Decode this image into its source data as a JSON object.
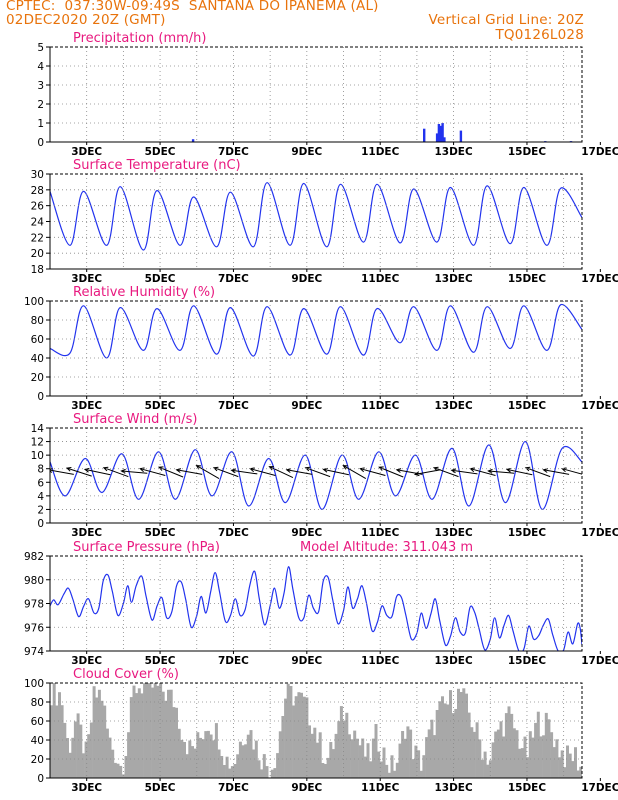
{
  "header": {
    "line1_left": "CPTEC:  037:30W-09:49S  SANTANA DO IPANEMA (AL)",
    "line2_left": "02DEC2020 20Z (GMT)",
    "line2_right": "Vertical Grid Line: 20Z",
    "line3_right": "TQ0126L028",
    "color": "#e8730c"
  },
  "x_axis": {
    "tick_labels": [
      "3DEC",
      "5DEC",
      "7DEC",
      "9DEC",
      "11DEC",
      "13DEC",
      "15DEC",
      "17DEC"
    ],
    "range_days": [
      0,
      14.5
    ]
  },
  "colors": {
    "title": "#e8197f",
    "line": "#2233ee",
    "bar": "#2233ee",
    "cloud": "#a8a8a8",
    "arrow": "#000000",
    "grid": "#888888"
  },
  "chart_data": [
    {
      "id": "precip",
      "type": "bar",
      "title": "Precipitation (mm/h)",
      "ylim": [
        0,
        5
      ],
      "yticks": [
        "0",
        "1",
        "2",
        "3",
        "4",
        "5"
      ],
      "grid": true,
      "points": [
        [
          3.9,
          0.15
        ],
        [
          5.0,
          0.02
        ],
        [
          9.4,
          0.02
        ],
        [
          10.2,
          0.7
        ],
        [
          10.55,
          0.45
        ],
        [
          10.6,
          0.95
        ],
        [
          10.65,
          0.85
        ],
        [
          10.7,
          1.0
        ],
        [
          10.75,
          0.25
        ],
        [
          11.2,
          0.6
        ],
        [
          13.5,
          0.05
        ],
        [
          14.2,
          0.05
        ]
      ]
    },
    {
      "id": "temp",
      "type": "line",
      "title": "Surface Temperature (nC)",
      "ylim": [
        18,
        30
      ],
      "yticks": [
        "18",
        "20",
        "22",
        "24",
        "26",
        "28",
        "30"
      ],
      "grid": true,
      "min_hour": 9,
      "max_hour": 18,
      "end_value": 24.5,
      "daily": [
        [
          19,
          27.8
        ],
        [
          21,
          27.8
        ],
        [
          21,
          28.4
        ],
        [
          20.4,
          27.9
        ],
        [
          21,
          27.1
        ],
        [
          20.8,
          27.7
        ],
        [
          20.8,
          28.9
        ],
        [
          21.0,
          28.8
        ],
        [
          20.8,
          28.7
        ],
        [
          21.4,
          28.7
        ],
        [
          21.3,
          28.1
        ],
        [
          21.4,
          28.3
        ],
        [
          21.0,
          28.5
        ],
        [
          21.2,
          28.3
        ],
        [
          21.0,
          28.2
        ]
      ]
    },
    {
      "id": "rh",
      "type": "line",
      "title": "Relative Humidity (%)",
      "ylim": [
        0,
        100
      ],
      "yticks": [
        "0",
        "20",
        "40",
        "60",
        "80",
        "100"
      ],
      "grid": true,
      "min_hour": 18,
      "max_hour": 9,
      "end_value": 70,
      "daily": [
        [
          100,
          50
        ],
        [
          95,
          45
        ],
        [
          93,
          40
        ],
        [
          92,
          48
        ],
        [
          95,
          48
        ],
        [
          93,
          44
        ],
        [
          94,
          42
        ],
        [
          92,
          43
        ],
        [
          94,
          44
        ],
        [
          92,
          43
        ],
        [
          94,
          56
        ],
        [
          95,
          48
        ],
        [
          94,
          46
        ],
        [
          95,
          50
        ],
        [
          96,
          48
        ]
      ]
    },
    {
      "id": "wind",
      "type": "line",
      "title": "Surface Wind (m/s)",
      "ylim": [
        0,
        14
      ],
      "yticks": [
        "0",
        "2",
        "4",
        "6",
        "8",
        "10",
        "12",
        "14"
      ],
      "grid": true,
      "min_hour": 6,
      "max_hour": 19,
      "end_value": 9,
      "daily": [
        [
          6.5,
          9.0
        ],
        [
          4.0,
          9.5
        ],
        [
          4.5,
          10.2
        ],
        [
          3.5,
          10.5
        ],
        [
          3.5,
          10.8
        ],
        [
          4.0,
          10.5
        ],
        [
          2.5,
          9.5
        ],
        [
          3.0,
          10.0
        ],
        [
          2.0,
          10.0
        ],
        [
          3.5,
          10.5
        ],
        [
          4.0,
          10.0
        ],
        [
          3.5,
          11.0
        ],
        [
          2.5,
          11.5
        ],
        [
          3.0,
          12.0
        ],
        [
          2.0,
          11.0
        ]
      ],
      "arrows_direction_deg": [
        170,
        162,
        168,
        160,
        175,
        165,
        158,
        170,
        150,
        160,
        172,
        165,
        155,
        170,
        160,
        168,
        150,
        165,
        158,
        170,
        190,
        160,
        172,
        165,
        175,
        168,
        160,
        170,
        165
      ]
    },
    {
      "id": "pressure",
      "type": "line",
      "title": "Surface Pressure (hPa)",
      "annotation": "Model Altitude: 311.043 m",
      "ylim": [
        974,
        982
      ],
      "yticks": [
        "974",
        "976",
        "978",
        "980",
        "982"
      ],
      "grid": true,
      "points": [
        [
          0,
          977.8
        ],
        [
          0.1,
          978.3
        ],
        [
          0.22,
          977.9
        ],
        [
          0.38,
          978.8
        ],
        [
          0.5,
          979.3
        ],
        [
          0.62,
          978.4
        ],
        [
          0.78,
          976.9
        ],
        [
          0.92,
          977.8
        ],
        [
          1.05,
          978.4
        ],
        [
          1.2,
          977.2
        ],
        [
          1.33,
          977.6
        ],
        [
          1.45,
          979.9
        ],
        [
          1.58,
          980.4
        ],
        [
          1.7,
          979.0
        ],
        [
          1.85,
          977.0
        ],
        [
          2.0,
          978.0
        ],
        [
          2.12,
          979.5
        ],
        [
          2.22,
          978.1
        ],
        [
          2.35,
          979.5
        ],
        [
          2.5,
          980.3
        ],
        [
          2.62,
          978.6
        ],
        [
          2.78,
          976.6
        ],
        [
          2.92,
          977.8
        ],
        [
          3.05,
          978.5
        ],
        [
          3.18,
          976.8
        ],
        [
          3.32,
          977.3
        ],
        [
          3.45,
          979.5
        ],
        [
          3.58,
          979.8
        ],
        [
          3.7,
          978.3
        ],
        [
          3.85,
          976.0
        ],
        [
          4.0,
          977.0
        ],
        [
          4.12,
          978.6
        ],
        [
          4.25,
          977.2
        ],
        [
          4.38,
          979.0
        ],
        [
          4.5,
          980.6
        ],
        [
          4.62,
          979.0
        ],
        [
          4.78,
          976.5
        ],
        [
          4.92,
          977.0
        ],
        [
          5.05,
          978.4
        ],
        [
          5.18,
          977.0
        ],
        [
          5.32,
          977.5
        ],
        [
          5.45,
          979.6
        ],
        [
          5.58,
          980.7
        ],
        [
          5.7,
          978.5
        ],
        [
          5.85,
          976.2
        ],
        [
          6.0,
          977.8
        ],
        [
          6.12,
          979.3
        ],
        [
          6.25,
          977.6
        ],
        [
          6.38,
          978.9
        ],
        [
          6.5,
          981.1
        ],
        [
          6.62,
          979.2
        ],
        [
          6.78,
          976.8
        ],
        [
          6.92,
          976.8
        ],
        [
          7.05,
          978.7
        ],
        [
          7.18,
          977.6
        ],
        [
          7.32,
          977.3
        ],
        [
          7.45,
          979.9
        ],
        [
          7.58,
          980.2
        ],
        [
          7.7,
          978.4
        ],
        [
          7.85,
          976.3
        ],
        [
          8.0,
          977.4
        ],
        [
          8.12,
          979.4
        ],
        [
          8.25,
          977.6
        ],
        [
          8.38,
          978.4
        ],
        [
          8.5,
          979.5
        ],
        [
          8.62,
          978.1
        ],
        [
          8.78,
          975.7
        ],
        [
          8.92,
          976.4
        ],
        [
          9.05,
          977.8
        ],
        [
          9.18,
          977.0
        ],
        [
          9.32,
          976.9
        ],
        [
          9.45,
          978.6
        ],
        [
          9.58,
          978.5
        ],
        [
          9.7,
          977.0
        ],
        [
          9.85,
          975.0
        ],
        [
          10.0,
          975.5
        ],
        [
          10.12,
          977.2
        ],
        [
          10.25,
          975.9
        ],
        [
          10.38,
          977.1
        ],
        [
          10.5,
          978.4
        ],
        [
          10.62,
          976.6
        ],
        [
          10.78,
          974.5
        ],
        [
          10.92,
          975.3
        ],
        [
          11.05,
          976.8
        ],
        [
          11.18,
          975.6
        ],
        [
          11.32,
          975.5
        ],
        [
          11.45,
          977.7
        ],
        [
          11.58,
          977.2
        ],
        [
          11.7,
          975.8
        ],
        [
          11.85,
          974.1
        ],
        [
          12.0,
          975.0
        ],
        [
          12.12,
          976.8
        ],
        [
          12.25,
          975.1
        ],
        [
          12.38,
          976.2
        ],
        [
          12.5,
          977.0
        ],
        [
          12.62,
          975.7
        ],
        [
          12.78,
          974.0
        ],
        [
          12.92,
          974.2
        ],
        [
          13.05,
          976.1
        ],
        [
          13.18,
          975.0
        ],
        [
          13.32,
          975.3
        ],
        [
          13.45,
          976.2
        ],
        [
          13.58,
          976.7
        ],
        [
          13.7,
          975.4
        ],
        [
          13.85,
          974.0
        ],
        [
          14.0,
          974.1
        ],
        [
          14.12,
          975.6
        ],
        [
          14.25,
          974.6
        ],
        [
          14.38,
          976.3
        ],
        [
          14.45,
          975.9
        ],
        [
          14.5,
          974.5
        ]
      ]
    },
    {
      "id": "cloud",
      "type": "area",
      "title": "Cloud Cover (%)",
      "ylim": [
        0,
        100
      ],
      "yticks": [
        "0",
        "20",
        "40",
        "60",
        "80",
        "100"
      ],
      "grid": true,
      "points": [
        [
          0,
          92
        ],
        [
          0.3,
          88
        ],
        [
          0.5,
          30
        ],
        [
          0.7,
          60
        ],
        [
          0.85,
          45
        ],
        [
          1.0,
          20
        ],
        [
          1.2,
          85
        ],
        [
          1.4,
          90
        ],
        [
          1.6,
          40
        ],
        [
          1.8,
          25
        ],
        [
          1.95,
          10
        ],
        [
          2.1,
          40
        ],
        [
          2.3,
          95
        ],
        [
          2.5,
          98
        ],
        [
          2.8,
          96
        ],
        [
          3.1,
          92
        ],
        [
          3.4,
          80
        ],
        [
          3.6,
          50
        ],
        [
          3.8,
          30
        ],
        [
          4.0,
          35
        ],
        [
          4.3,
          60
        ],
        [
          4.6,
          45
        ],
        [
          4.8,
          20
        ],
        [
          5.0,
          15
        ],
        [
          5.2,
          40
        ],
        [
          5.4,
          55
        ],
        [
          5.6,
          35
        ],
        [
          5.8,
          20
        ],
        [
          6.0,
          10
        ],
        [
          6.2,
          30
        ],
        [
          6.4,
          85
        ],
        [
          6.6,
          88
        ],
        [
          6.9,
          80
        ],
        [
          7.2,
          55
        ],
        [
          7.4,
          30
        ],
        [
          7.6,
          20
        ],
        [
          7.8,
          45
        ],
        [
          8.0,
          70
        ],
        [
          8.3,
          50
        ],
        [
          8.5,
          30
        ],
        [
          8.7,
          20
        ],
        [
          8.9,
          45
        ],
        [
          9.1,
          25
        ],
        [
          9.3,
          10
        ],
        [
          9.5,
          20
        ],
        [
          9.7,
          60
        ],
        [
          9.9,
          30
        ],
        [
          10.1,
          15
        ],
        [
          10.3,
          40
        ],
        [
          10.6,
          70
        ],
        [
          10.9,
          80
        ],
        [
          11.2,
          90
        ],
        [
          11.5,
          60
        ],
        [
          11.8,
          30
        ],
        [
          12.0,
          20
        ],
        [
          12.2,
          50
        ],
        [
          12.5,
          65
        ],
        [
          12.8,
          40
        ],
        [
          13.0,
          25
        ],
        [
          13.3,
          60
        ],
        [
          13.6,
          55
        ],
        [
          13.9,
          30
        ],
        [
          14.1,
          20
        ],
        [
          14.3,
          25
        ],
        [
          14.5,
          10
        ]
      ]
    }
  ]
}
